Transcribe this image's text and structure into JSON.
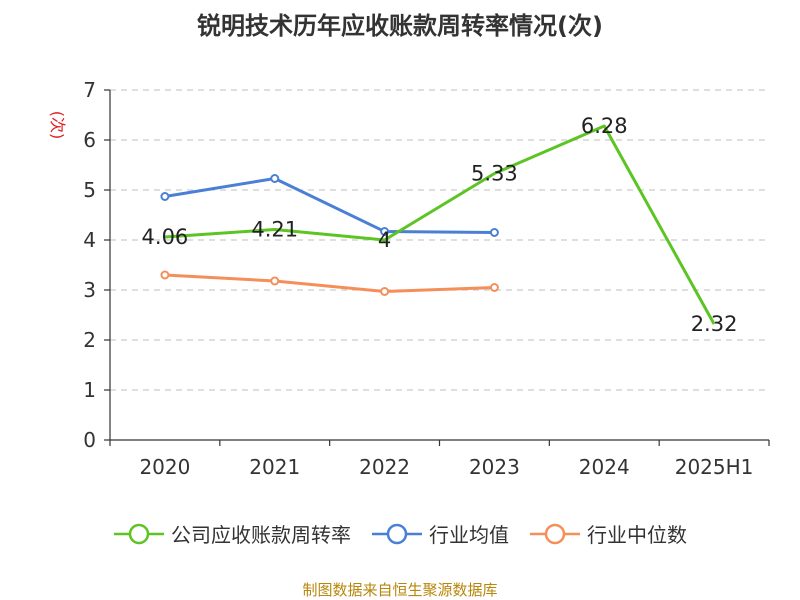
{
  "title": "锐明技术历年应收账款周转率情况(次)",
  "source": "制图数据来自恒生聚源数据库",
  "chart_data": {
    "type": "line",
    "categories": [
      "2020",
      "2021",
      "2022",
      "2023",
      "2024",
      "2025H1"
    ],
    "ylabel": "(次)",
    "ylim": [
      0,
      7
    ],
    "yticks": [
      "0",
      "1",
      "2",
      "3",
      "4",
      "5",
      "6",
      "7"
    ],
    "grid": true,
    "legend_position": "bottom",
    "series": [
      {
        "name": "公司应收账款周转率",
        "color": "#5cc423",
        "values": [
          4.06,
          4.21,
          4,
          5.33,
          6.28,
          2.32
        ],
        "labels": [
          "4.06",
          "4.21",
          "4",
          "5.33",
          "6.28",
          "2.32"
        ]
      },
      {
        "name": "行业均值",
        "color": "#4a7fd6",
        "values": [
          4.87,
          5.23,
          4.17,
          4.15,
          null,
          null
        ]
      },
      {
        "name": "行业中位数",
        "color": "#f58f5a",
        "values": [
          3.3,
          3.18,
          2.97,
          3.05,
          null,
          null
        ]
      }
    ]
  }
}
